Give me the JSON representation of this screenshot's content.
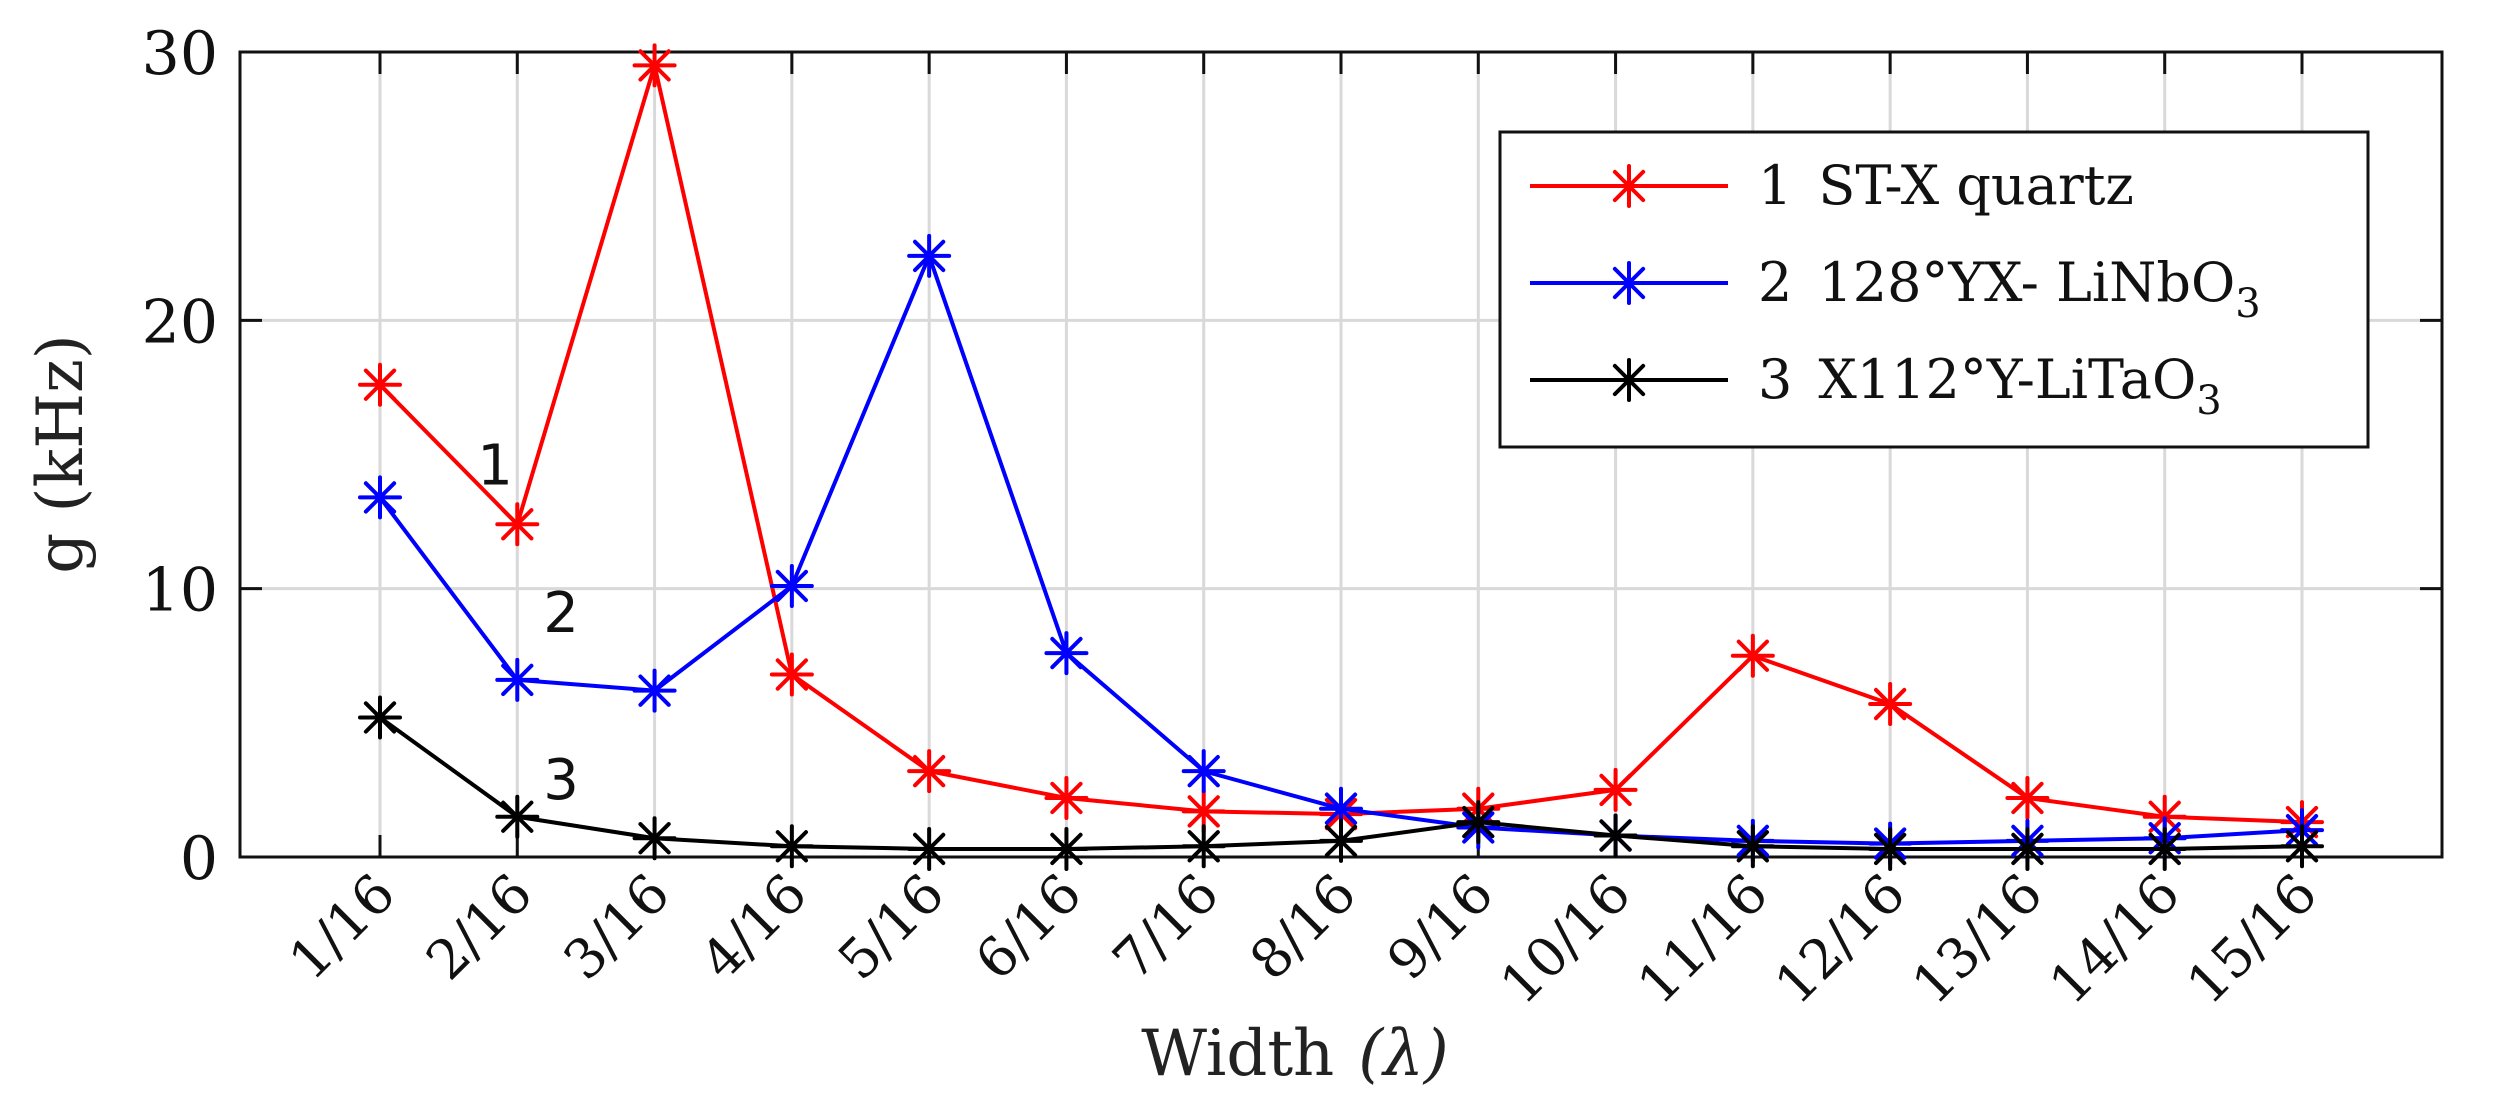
{
  "chart_data": {
    "type": "line",
    "title": "",
    "xlabel": "Width",
    "xlabel_symbol": "(λ)",
    "ylabel": "g  (kHz)",
    "categories": [
      "1/16",
      "2/16",
      "3/16",
      "4/16",
      "5/16",
      "6/16",
      "7/16",
      "8/16",
      "9/16",
      "10/16",
      "11/16",
      "12/16",
      "13/16",
      "14/16",
      "15/16"
    ],
    "ylim": [
      0,
      30
    ],
    "yticks": [
      "0",
      "10",
      "20",
      "30"
    ],
    "grid": true,
    "legend_position": "top-right",
    "series": [
      {
        "name": "ST-X quartz",
        "index": "1",
        "legend_label": "ST-X quartz",
        "color": "#ff0000",
        "marker": "asterisk",
        "values": [
          17.6,
          12.4,
          29.5,
          6.8,
          3.2,
          2.2,
          1.7,
          1.6,
          1.8,
          2.5,
          7.5,
          5.7,
          2.2,
          1.5,
          1.3
        ]
      },
      {
        "name": "128°YX- LiNbO3",
        "index": "2",
        "legend_label": "128°YX- LiNbO",
        "legend_sub": "3",
        "color": "#0000ff",
        "marker": "asterisk",
        "values": [
          13.4,
          6.6,
          6.2,
          10.1,
          22.4,
          7.6,
          3.2,
          1.8,
          1.1,
          0.8,
          0.6,
          0.5,
          0.6,
          0.7,
          1.0
        ]
      },
      {
        "name": "X112°Y-LiTaO3",
        "index": "3",
        "legend_label": "X112°Y-LiTaO",
        "legend_sub": "3",
        "color": "#000000",
        "marker": "asterisk",
        "values": [
          5.2,
          1.5,
          0.7,
          0.4,
          0.3,
          0.3,
          0.4,
          0.6,
          1.3,
          0.8,
          0.4,
          0.3,
          0.3,
          0.3,
          0.4
        ]
      }
    ],
    "annotations": [
      {
        "text": "1",
        "series": 0,
        "category": 1
      },
      {
        "text": "2",
        "series": 1,
        "category": 1
      },
      {
        "text": "3",
        "series": 2,
        "category": 1
      }
    ]
  }
}
